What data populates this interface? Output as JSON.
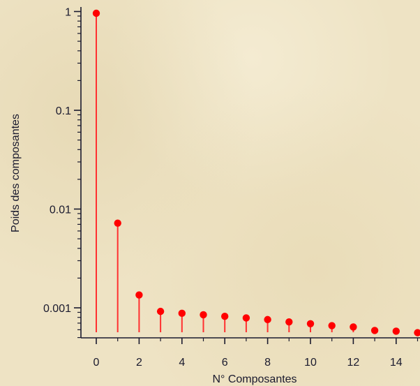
{
  "chart_data": {
    "type": "scatter",
    "style": "stem",
    "title": "",
    "xlabel": "N° Composantes",
    "ylabel": "Poids des composantes",
    "yscale": "log",
    "xlim": [
      -0.7,
      15.2
    ],
    "ylim": [
      0.0005,
      1.1
    ],
    "x_ticks": [
      0,
      2,
      4,
      6,
      8,
      10,
      12,
      14
    ],
    "y_ticks": [
      0.001,
      0.01,
      0.1,
      1
    ],
    "y_tick_labels": [
      "0.001",
      "0.01",
      "0.1",
      "1"
    ],
    "grid": false,
    "marker_color": "#ff0000",
    "stem_color": "#ff3030",
    "axis_color": "#1a1a2e",
    "x": [
      0,
      1,
      2,
      3,
      4,
      5,
      6,
      7,
      8,
      9,
      10,
      11,
      12,
      13,
      14,
      15
    ],
    "values": [
      0.96,
      0.0072,
      0.00135,
      0.00092,
      0.00088,
      0.00085,
      0.00082,
      0.00079,
      0.00076,
      0.00072,
      0.00069,
      0.00066,
      0.00064,
      0.00059,
      0.00058,
      0.00056
    ]
  }
}
